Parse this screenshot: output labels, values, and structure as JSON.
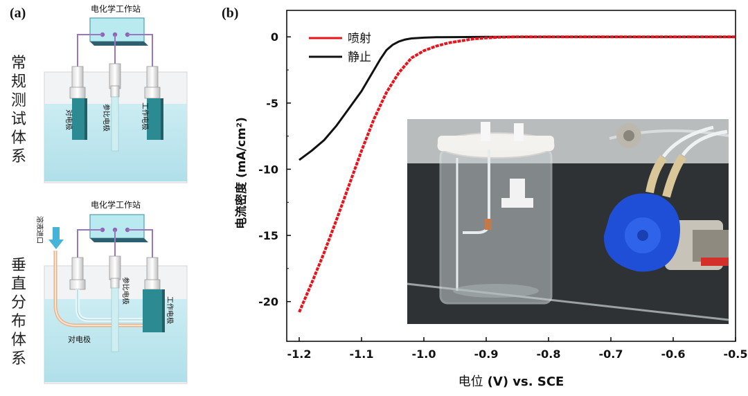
{
  "panel_a": {
    "label": "(a)",
    "top": {
      "system_label": "常规测试体系",
      "workstation": "电化学工作站",
      "counter_electrode": "对电极",
      "reference_electrode": "参比电极",
      "working_electrode": "工作电极"
    },
    "bottom": {
      "system_label": "垂直分布体系",
      "workstation": "电化学工作站",
      "inlet": "溶液进口",
      "counter_electrode": "对电极",
      "reference_electrode": "参比电极",
      "working_electrode": "工作电极"
    }
  },
  "panel_b": {
    "label": "(b)",
    "legend": [
      {
        "name": "喷射",
        "color": "#e8141c"
      },
      {
        "name": "静止",
        "color": "#111111"
      }
    ]
  },
  "chart_data": {
    "type": "line",
    "title": "",
    "xlabel_prefix": "电位",
    "xlabel_suffix": "(V) vs. SCE",
    "ylabel": "电流密度 (mA/cm²)",
    "xlim": [
      -1.22,
      -0.5
    ],
    "ylim": [
      -23,
      2
    ],
    "x_ticks": [
      -1.2,
      -1.1,
      -1.0,
      -0.9,
      -0.8,
      -0.7,
      -0.6,
      -0.5
    ],
    "x_tick_labels": [
      "-1.2",
      "-1.1",
      "-1.0",
      "-0.9",
      "-0.8",
      "-0.7",
      "-0.6",
      "-0.5"
    ],
    "y_ticks": [
      0,
      -5,
      -10,
      -15,
      -20
    ],
    "y_tick_labels": [
      "0",
      "-5",
      "-10",
      "-15",
      "-20"
    ],
    "series": [
      {
        "name": "静止",
        "color": "#111111",
        "x": [
          -1.2,
          -1.18,
          -1.16,
          -1.14,
          -1.12,
          -1.1,
          -1.09,
          -1.08,
          -1.07,
          -1.06,
          -1.05,
          -1.04,
          -1.03,
          -1.02,
          -1.0,
          -0.98,
          -0.95,
          -0.9,
          -0.8,
          -0.7,
          -0.6,
          -0.5
        ],
        "y": [
          -9.3,
          -8.6,
          -7.8,
          -6.7,
          -5.4,
          -4.1,
          -3.3,
          -2.5,
          -1.7,
          -1.0,
          -0.6,
          -0.35,
          -0.2,
          -0.12,
          -0.06,
          -0.03,
          -0.02,
          0,
          0,
          0,
          0,
          0
        ]
      },
      {
        "name": "喷射",
        "color": "#e8141c",
        "x": [
          -1.2,
          -1.18,
          -1.16,
          -1.14,
          -1.12,
          -1.1,
          -1.08,
          -1.06,
          -1.04,
          -1.02,
          -1.0,
          -0.98,
          -0.96,
          -0.94,
          -0.92,
          -0.9,
          -0.88,
          -0.85,
          -0.8,
          -0.7,
          -0.6,
          -0.5
        ],
        "y": [
          -20.8,
          -18.6,
          -16.3,
          -13.8,
          -11.2,
          -8.6,
          -6.2,
          -4.2,
          -2.7,
          -1.6,
          -1.05,
          -0.7,
          -0.45,
          -0.3,
          -0.15,
          -0.08,
          -0.03,
          0,
          0,
          0,
          0,
          0
        ]
      }
    ],
    "inset": "photo of beaker cell with peristaltic pump"
  }
}
